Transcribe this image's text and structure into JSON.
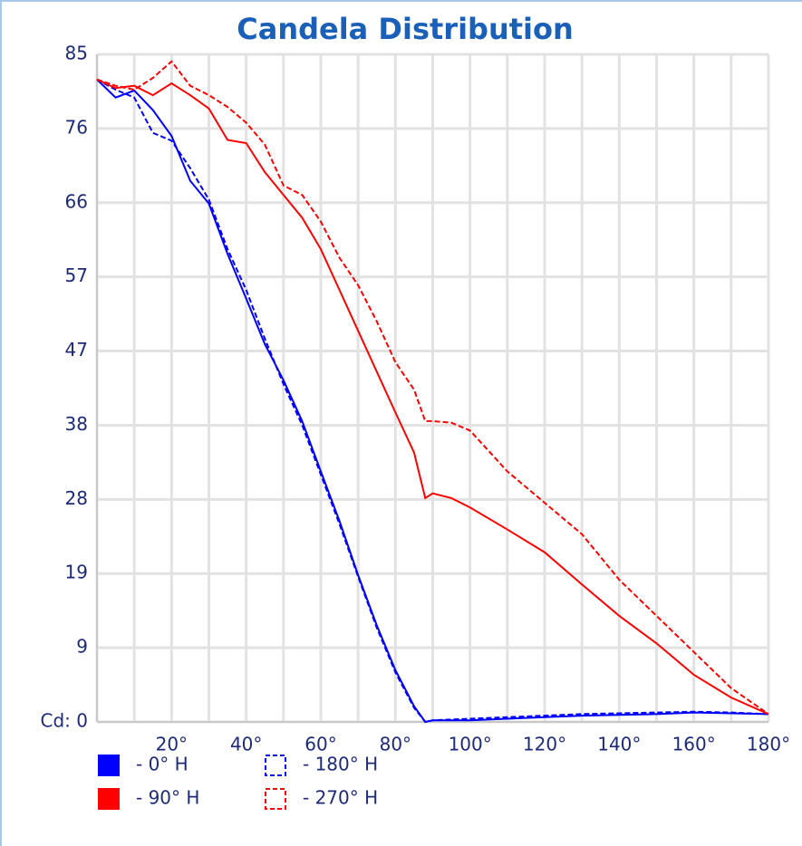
{
  "chart_data": {
    "type": "line",
    "title": "Candela Distribution",
    "x": [
      0,
      5,
      10,
      15,
      20,
      25,
      30,
      35,
      40,
      45,
      50,
      55,
      60,
      65,
      70,
      75,
      80,
      85,
      88,
      90,
      95,
      100,
      110,
      120,
      130,
      140,
      150,
      160,
      170,
      180
    ],
    "series": [
      {
        "name": "- 0° H",
        "color": "#0000ff",
        "dash": false,
        "values": [
          81.8,
          79.5,
          80.4,
          77.9,
          74.6,
          68.9,
          66.0,
          59.6,
          53.9,
          48.1,
          43.5,
          38.3,
          31.9,
          25.6,
          18.7,
          12.3,
          6.6,
          2.0,
          0,
          0.2,
          0.2,
          0.2,
          0.4,
          0.6,
          0.8,
          0.9,
          1.0,
          1.2,
          1.1,
          1.0
        ]
      },
      {
        "name": "- 180° H",
        "color": "#0000ff",
        "dash": true,
        "values": [
          81.8,
          80.5,
          79.5,
          75.0,
          74.0,
          70.5,
          66.5,
          60.2,
          55.0,
          48.8,
          43.0,
          37.8,
          31.5,
          25.2,
          18.5,
          12.0,
          6.3,
          1.8,
          0,
          0.2,
          0.3,
          0.4,
          0.6,
          0.8,
          1.0,
          1.1,
          1.2,
          1.3,
          1.2,
          1.0
        ]
      },
      {
        "name": "- 90° H",
        "color": "#ff0000",
        "dash": false,
        "values": [
          81.8,
          80.7,
          81.0,
          79.8,
          81.3,
          79.8,
          78.1,
          74.1,
          73.7,
          70.0,
          67.1,
          64.2,
          60.2,
          55.0,
          49.8,
          44.6,
          39.4,
          34.3,
          28.5,
          29.1,
          28.5,
          27.3,
          24.5,
          21.6,
          17.5,
          13.5,
          10.0,
          6.0,
          3.1,
          1.0
        ]
      },
      {
        "name": "- 270° H",
        "color": "#ff0000",
        "dash": true,
        "values": [
          81.8,
          81.0,
          80.5,
          82.0,
          84.1,
          81.0,
          79.8,
          78.3,
          76.3,
          73.5,
          68.3,
          67.1,
          63.7,
          59.1,
          55.6,
          51.0,
          45.8,
          42.3,
          38.3,
          38.3,
          38.1,
          37.1,
          31.9,
          27.9,
          23.9,
          18.1,
          13.5,
          8.9,
          4.3,
          1.0
        ]
      }
    ],
    "xlim": [
      0,
      180
    ],
    "xticks": [
      {
        "value": 20,
        "label": "20°"
      },
      {
        "value": 40,
        "label": "40°"
      },
      {
        "value": 60,
        "label": "60°"
      },
      {
        "value": 80,
        "label": "80°"
      },
      {
        "value": 100,
        "label": "100°"
      },
      {
        "value": 120,
        "label": "120°"
      },
      {
        "value": 140,
        "label": "140°"
      },
      {
        "value": 160,
        "label": "160°"
      },
      {
        "value": 180,
        "label": "180°"
      }
    ],
    "xgrid": [
      0,
      10,
      20,
      30,
      40,
      50,
      60,
      70,
      80,
      90,
      100,
      110,
      120,
      130,
      140,
      150,
      160,
      170,
      180
    ],
    "ylim": [
      0,
      85
    ],
    "yticks": [
      {
        "value": 0,
        "label": "Cd: 0"
      },
      {
        "value": 9.444,
        "label": "9"
      },
      {
        "value": 18.889,
        "label": "19"
      },
      {
        "value": 28.333,
        "label": "28"
      },
      {
        "value": 37.778,
        "label": "38"
      },
      {
        "value": 47.222,
        "label": "47"
      },
      {
        "value": 56.667,
        "label": "57"
      },
      {
        "value": 66.111,
        "label": "66"
      },
      {
        "value": 75.556,
        "label": "76"
      },
      85
    ],
    "grid": true,
    "legend": "bottom-left"
  }
}
